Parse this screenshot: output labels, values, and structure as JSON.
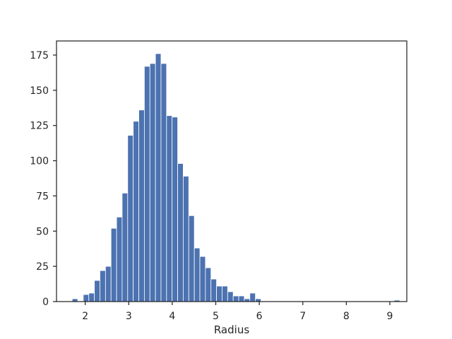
{
  "chart_data": {
    "type": "bar",
    "title": "",
    "xlabel": "Radius",
    "ylabel": "",
    "xlim": [
      1.34,
      9.39
    ],
    "ylim": [
      0,
      185
    ],
    "bin_start": 1.7,
    "bin_width": 0.1276,
    "values": [
      2,
      0,
      5,
      6,
      15,
      22,
      25,
      52,
      60,
      77,
      118,
      128,
      136,
      167,
      169,
      176,
      169,
      132,
      131,
      98,
      89,
      61,
      38,
      32,
      24,
      16,
      11,
      11,
      7,
      4,
      4,
      2,
      6,
      2,
      0,
      0,
      0,
      0,
      0,
      0,
      0,
      0,
      0,
      0,
      0,
      0,
      0,
      0,
      0,
      0,
      0,
      0,
      0,
      0,
      0,
      0,
      0,
      0,
      1
    ],
    "x_ticks": [
      2,
      3,
      4,
      5,
      6,
      7,
      8,
      9
    ],
    "y_ticks": [
      0,
      25,
      50,
      75,
      100,
      125,
      150,
      175
    ],
    "bar_color": "#4c72b0",
    "grid": false,
    "legend": "none"
  }
}
